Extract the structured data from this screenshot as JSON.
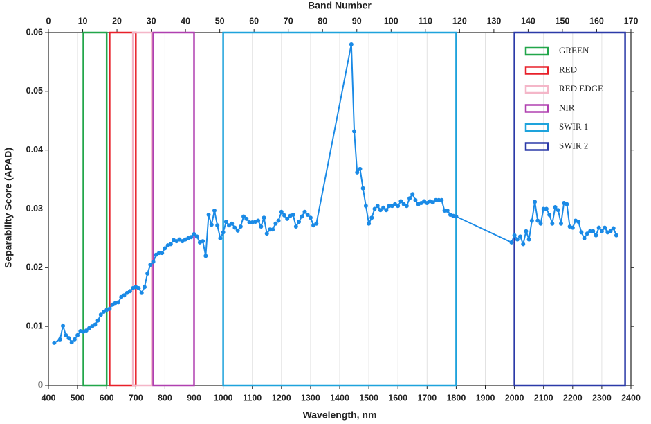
{
  "chart_data": {
    "type": "line",
    "xlabel": "Wavelength, nm",
    "x2label": "Band Number",
    "ylabel": "Separability Score (APAD)",
    "xlim": [
      400,
      2400
    ],
    "xticks": [
      400,
      500,
      600,
      700,
      800,
      900,
      1000,
      1100,
      1200,
      1300,
      1400,
      1500,
      1600,
      1700,
      1800,
      1900,
      2000,
      2100,
      2200,
      2300,
      2400
    ],
    "x2lim": [
      0,
      170
    ],
    "x2ticks": [
      0,
      10,
      20,
      30,
      40,
      50,
      60,
      70,
      80,
      90,
      100,
      110,
      120,
      130,
      140,
      150,
      160,
      170
    ],
    "ylim": [
      0,
      0.06
    ],
    "yticks": [
      0,
      0.01,
      0.02,
      0.03,
      0.04,
      0.05,
      0.06
    ],
    "grid": true,
    "legend": "upper right",
    "regions": [
      {
        "name": "GREEN",
        "color": "#22a64a",
        "x": [
          520,
          600
        ]
      },
      {
        "name": "RED",
        "color": "#e8202a",
        "x": [
          610,
          700
        ]
      },
      {
        "name": "RED EDGE",
        "color": "#f4b6c8",
        "x": [
          690,
          755
        ]
      },
      {
        "name": "NIR",
        "color": "#b040b0",
        "x": [
          760,
          900
        ]
      },
      {
        "name": "SWIR 1",
        "color": "#1ea3dc",
        "x": [
          1000,
          1800
        ]
      },
      {
        "name": "SWIR 2",
        "color": "#2b3aa8",
        "x": [
          2000,
          2380
        ]
      }
    ],
    "series": [
      {
        "color": "#1a8ae6",
        "x": [
          420,
          440,
          450,
          460,
          470,
          480,
          490,
          500,
          510,
          520,
          530,
          540,
          550,
          560,
          570,
          580,
          590,
          600,
          610,
          620,
          630,
          640,
          650,
          660,
          670,
          680,
          690,
          700,
          710,
          720,
          730,
          740,
          750,
          760,
          770,
          780,
          790,
          800,
          810,
          820,
          830,
          840,
          850,
          860,
          870,
          880,
          890,
          900,
          910,
          920,
          930,
          940,
          950,
          960,
          970,
          980,
          990,
          1000,
          1010,
          1020,
          1030,
          1040,
          1050,
          1060,
          1070,
          1080,
          1090,
          1100,
          1110,
          1120,
          1130,
          1140,
          1150,
          1160,
          1170,
          1180,
          1190,
          1200,
          1210,
          1220,
          1230,
          1240,
          1250,
          1260,
          1270,
          1280,
          1290,
          1300,
          1310,
          1320,
          1440,
          1450,
          1460,
          1470,
          1480,
          1490,
          1500,
          1510,
          1520,
          1530,
          1540,
          1550,
          1560,
          1570,
          1580,
          1590,
          1600,
          1610,
          1620,
          1630,
          1640,
          1650,
          1660,
          1670,
          1680,
          1690,
          1700,
          1710,
          1720,
          1730,
          1740,
          1750,
          1760,
          1770,
          1780,
          1790,
          1800,
          1990,
          2000,
          2010,
          2020,
          2030,
          2040,
          2050,
          2060,
          2070,
          2080,
          2090,
          2100,
          2110,
          2120,
          2130,
          2140,
          2150,
          2160,
          2170,
          2180,
          2190,
          2200,
          2210,
          2220,
          2230,
          2240,
          2250,
          2260,
          2270,
          2280,
          2290,
          2300,
          2310,
          2320,
          2330,
          2340,
          2350
        ],
        "values": [
          0.0072,
          0.0078,
          0.0101,
          0.0085,
          0.008,
          0.0073,
          0.0078,
          0.0085,
          0.0092,
          0.0091,
          0.0093,
          0.0097,
          0.01,
          0.0103,
          0.011,
          0.012,
          0.0125,
          0.0128,
          0.013,
          0.0137,
          0.014,
          0.0141,
          0.015,
          0.0153,
          0.0157,
          0.016,
          0.0165,
          0.0167,
          0.0165,
          0.0157,
          0.0167,
          0.019,
          0.0205,
          0.021,
          0.0222,
          0.0225,
          0.0225,
          0.0233,
          0.0238,
          0.024,
          0.0247,
          0.0245,
          0.0248,
          0.0245,
          0.0248,
          0.025,
          0.0252,
          0.0257,
          0.0253,
          0.0243,
          0.0245,
          0.022,
          0.029,
          0.0273,
          0.0297,
          0.0272,
          0.025,
          0.026,
          0.0278,
          0.0272,
          0.0275,
          0.0268,
          0.0263,
          0.027,
          0.0287,
          0.0283,
          0.0277,
          0.0277,
          0.0278,
          0.028,
          0.027,
          0.0285,
          0.0258,
          0.0265,
          0.0265,
          0.0275,
          0.028,
          0.0295,
          0.0289,
          0.0283,
          0.0288,
          0.029,
          0.027,
          0.0278,
          0.0287,
          0.0295,
          0.029,
          0.0285,
          0.0272,
          0.0275,
          0.058,
          0.0432,
          0.0362,
          0.0368,
          0.0335,
          0.0305,
          0.0275,
          0.0285,
          0.03,
          0.0305,
          0.0298,
          0.0302,
          0.0298,
          0.0305,
          0.0305,
          0.0308,
          0.0305,
          0.0313,
          0.0308,
          0.0305,
          0.0318,
          0.0325,
          0.0315,
          0.0308,
          0.031,
          0.0313,
          0.031,
          0.0313,
          0.0311,
          0.0315,
          0.0315,
          0.0315,
          0.0297,
          0.0297,
          0.029,
          0.0288,
          0.0287,
          0.0243,
          0.0255,
          0.0248,
          0.0253,
          0.024,
          0.0262,
          0.0248,
          0.028,
          0.0312,
          0.028,
          0.0275,
          0.03,
          0.03,
          0.029,
          0.0275,
          0.0303,
          0.0298,
          0.0275,
          0.031,
          0.0308,
          0.027,
          0.0268,
          0.028,
          0.0278,
          0.026,
          0.025,
          0.0258,
          0.0262,
          0.0262,
          0.0255,
          0.0268,
          0.0262,
          0.0268,
          0.026,
          0.0262,
          0.0267,
          0.0255
        ]
      }
    ]
  }
}
